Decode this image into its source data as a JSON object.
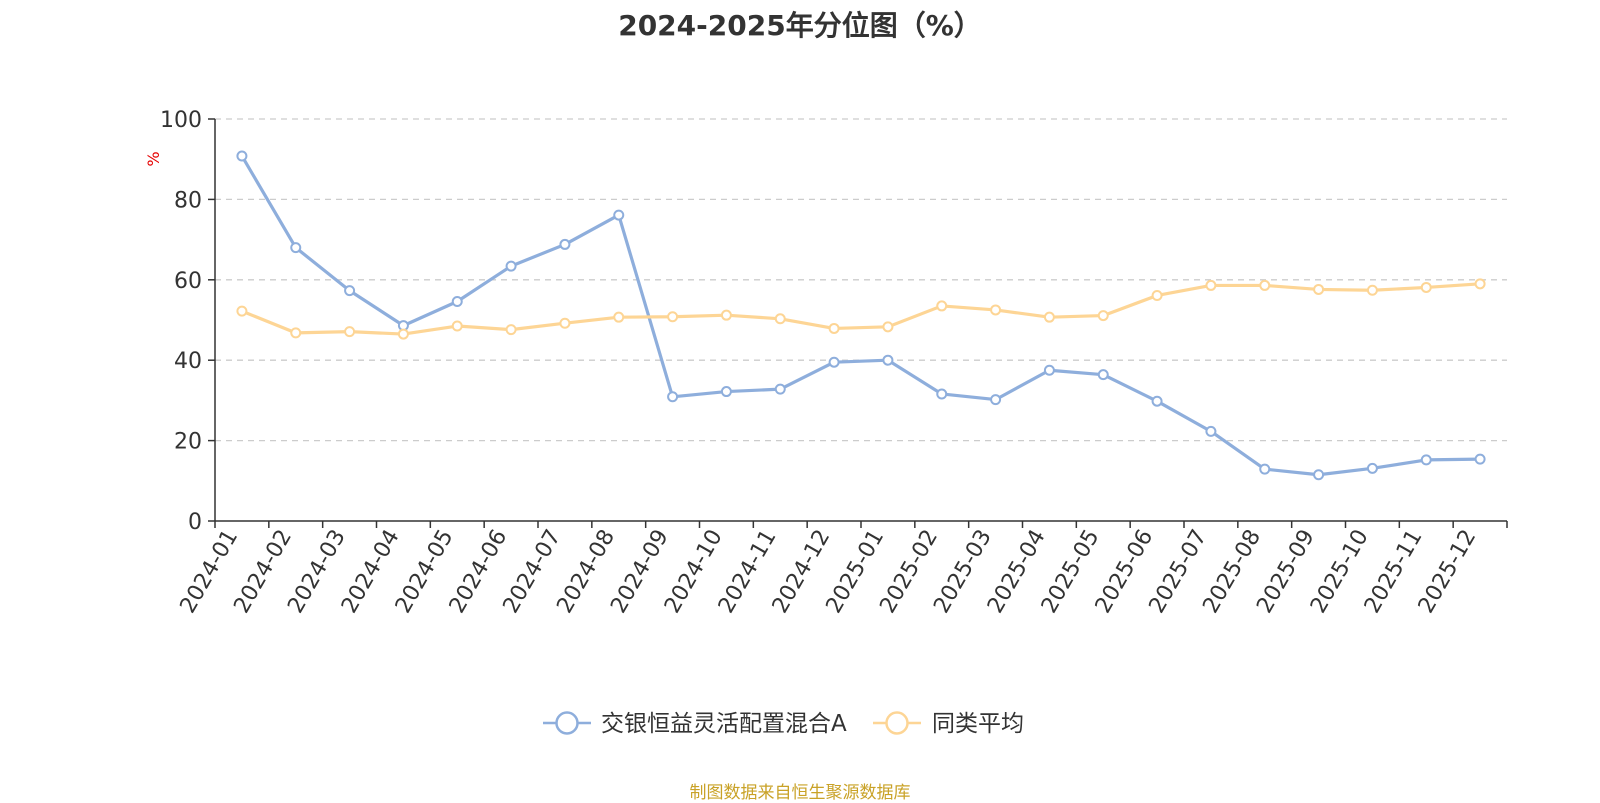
{
  "chart_data": {
    "type": "line",
    "title": "2024-2025年分位图（%）",
    "ylabel": "%",
    "xlabel": "",
    "ylim": [
      0,
      100
    ],
    "yticks": [
      "0",
      "20",
      "40",
      "60",
      "80",
      "100"
    ],
    "grid": true,
    "legend_position": "bottom",
    "categories": [
      "2024-01",
      "2024-02",
      "2024-03",
      "2024-04",
      "2024-05",
      "2024-06",
      "2024-07",
      "2024-08",
      "2024-09",
      "2024-10",
      "2024-11",
      "2024-12",
      "2025-01",
      "2025-02",
      "2025-03",
      "2025-04",
      "2025-05",
      "2025-06",
      "2025-07",
      "2025-08",
      "2025-09",
      "2025-10",
      "2025-11",
      "2025-12"
    ],
    "series": [
      {
        "name": "交银恒益灵活配置混合A",
        "color": "#8eaedc",
        "values": [
          90.8,
          68.0,
          57.3,
          48.6,
          54.6,
          63.4,
          68.8,
          76.1,
          30.9,
          32.2,
          32.8,
          39.5,
          40.0,
          31.6,
          30.2,
          37.5,
          36.4,
          29.8,
          22.3,
          12.9,
          11.5,
          13.1,
          15.2,
          15.4
        ]
      },
      {
        "name": "同类平均",
        "color": "#fdd595",
        "values": [
          52.2,
          46.8,
          47.1,
          46.5,
          48.5,
          47.6,
          49.2,
          50.7,
          50.8,
          51.2,
          50.3,
          47.9,
          48.3,
          53.5,
          52.5,
          50.7,
          51.1,
          56.1,
          58.6,
          58.6,
          57.6,
          57.4,
          58.1,
          59.0
        ]
      }
    ]
  },
  "source_text": "制图数据来自恒生聚源数据库",
  "colors": {
    "axis": "#333333",
    "grid": "#cccccc",
    "unit": "#e60000",
    "source": "#c9a227"
  }
}
